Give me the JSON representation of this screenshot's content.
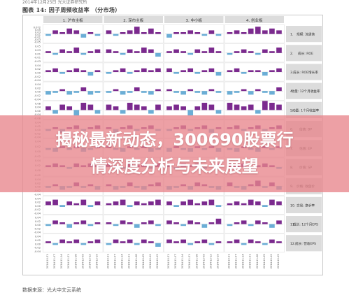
{
  "doc_header": "2014年12月25日 光大证券研究所",
  "figure": {
    "label": "图表 14:",
    "title": "因子周频收益率",
    "market": "（分市场）"
  },
  "source": "数据来源：光大中文云系统",
  "headline": {
    "line1": "揭秘最新动态，300690股票行",
    "line2": "情深度分析与未来展望"
  },
  "colors": {
    "purple": "#7b2a8e",
    "blue": "#6baed6",
    "panel_header": "#dcdcdc",
    "banner": "#e8858c"
  },
  "chart_data": {
    "type": "bar",
    "markets": [
      "1. 沪市主板",
      "2. 深市主板",
      "3. 中小板",
      "4. 创业板"
    ],
    "factors": [
      {
        "code": "1",
        "name": "规模",
        "sub": "流通值"
      },
      {
        "code": "2",
        "name": "成长",
        "sub": "ROE"
      },
      {
        "code": "3",
        "name": "成长",
        "sub": "ROE增长率"
      },
      {
        "code": "4",
        "name": "动量",
        "sub": "12个月收益率"
      },
      {
        "code": "5",
        "name": "动量",
        "sub": "1个月收益率"
      },
      {
        "code": "6",
        "name": "估值",
        "sub": "BP"
      },
      {
        "code": "7",
        "name": "估值",
        "sub": "EP"
      },
      {
        "code": "8",
        "name": "价值",
        "sub": "SP"
      },
      {
        "code": "9",
        "name": "价格",
        "sub": "收盘价"
      },
      {
        "code": "10",
        "name": "交易",
        "sub": "换手率"
      },
      {
        "code": "11",
        "name": "成长",
        "sub": "12个月EPS"
      },
      {
        "code": "12",
        "name": "成长",
        "sub": "营收EPS"
      }
    ],
    "y_ticks": [
      [
        "0.072",
        "0.05",
        "0.03",
        "0.01",
        "-0.01",
        "-0.03",
        "-0.05"
      ],
      [
        "0.05",
        "0.03",
        "0.01",
        "-0.01",
        "-0.03"
      ],
      [
        "0.04",
        "0.02",
        "0.00",
        "-0.02",
        "-0.04"
      ],
      [
        "0.04",
        "0.02",
        "0.00",
        "-0.02",
        "-0.04"
      ],
      [
        "0.08",
        "0.04",
        "0.00",
        "-0.04",
        "-0.08"
      ],
      [
        "0.04",
        "0.02",
        "0.00",
        "-0.02",
        "-0.04"
      ],
      [
        "0.04",
        "0.02",
        "0.00",
        "-0.02"
      ],
      [
        "0.04",
        "0.02",
        "0.00",
        "-0.02"
      ],
      [
        "0.04",
        "0.02",
        "0.00",
        "-0.02",
        "-0.04"
      ],
      [
        "0.04",
        "0.02",
        "0.00",
        "-0.02",
        "-0.04"
      ],
      [
        "0.04",
        "0.02",
        "0.00",
        "-0.02",
        "-0.04"
      ],
      [
        "0.04",
        "0.02",
        "0.00",
        "-0.02",
        "-0.04"
      ]
    ],
    "dates": [
      "2014-10-31",
      "2014-11-07",
      "2014-11-14",
      "2014-11-21",
      "2014-11-28",
      "2014-12-05",
      "2014-12-12",
      "2014-12-19"
    ],
    "values": [
      [
        [
          -0.01,
          0.02,
          0.01,
          0.03,
          0.02,
          -0.02,
          0.01,
          -0.01
        ],
        [
          0.02,
          -0.01,
          0.01,
          0.02,
          0.04,
          0.01,
          0.03,
          0.01
        ],
        [
          -0.02,
          0.01,
          0.01,
          0.02,
          0.01,
          -0.01,
          0.02,
          -0.01
        ],
        [
          0.01,
          0.02,
          0.01,
          0.03,
          0.04,
          0.02,
          0.03,
          0.02
        ]
      ],
      [
        [
          0.01,
          -0.01,
          0.02,
          0.01,
          0.03,
          -0.01,
          0.01,
          0.02
        ],
        [
          0.02,
          0.01,
          -0.01,
          0.02,
          0.01,
          0.03,
          0.02,
          -0.02
        ],
        [
          0.01,
          0.02,
          0.01,
          -0.01,
          0.02,
          0.01,
          0.03,
          0.01
        ],
        [
          -0.01,
          0.01,
          0.02,
          0.01,
          -0.01,
          0.02,
          0.01,
          0.03
        ]
      ],
      [
        [
          0.01,
          0.02,
          -0.01,
          0.01,
          0.02,
          0.01,
          -0.02,
          0.01
        ],
        [
          -0.01,
          0.01,
          0.02,
          -0.01,
          0.01,
          0.02,
          0.01,
          0.02
        ],
        [
          0.02,
          -0.01,
          0.01,
          0.02,
          -0.01,
          0.01,
          0.02,
          -0.02
        ],
        [
          0.01,
          0.02,
          -0.01,
          0.01,
          0.01,
          -0.02,
          0.01,
          0.02
        ]
      ],
      [
        [
          -0.02,
          -0.01,
          0.01,
          -0.02,
          -0.01,
          0.02,
          -0.02,
          -0.01
        ],
        [
          -0.01,
          0.01,
          -0.02,
          -0.01,
          0.02,
          -0.01,
          -0.02,
          0.01
        ],
        [
          0.01,
          -0.01,
          -0.02,
          0.01,
          -0.01,
          -0.02,
          0.01,
          -0.01
        ],
        [
          -0.02,
          -0.01,
          0.01,
          -0.02,
          0.01,
          -0.01,
          -0.02,
          0.02
        ]
      ],
      [
        [
          0.02,
          -0.02,
          0.03,
          0.02,
          -0.03,
          0.04,
          0.03,
          -0.02
        ],
        [
          0.03,
          0.02,
          -0.02,
          0.04,
          0.03,
          0.02,
          -0.02,
          0.03
        ],
        [
          0.02,
          0.03,
          0.02,
          -0.03,
          0.02,
          0.04,
          0.03,
          -0.02
        ],
        [
          0.04,
          0.03,
          0.02,
          0.03,
          -0.02,
          0.05,
          0.04,
          0.03
        ]
      ],
      [
        [
          -0.01,
          0.01,
          -0.02,
          0.01,
          0.02,
          -0.01,
          0.01,
          0.02
        ],
        [
          0.01,
          -0.02,
          0.01,
          0.02,
          -0.01,
          0.01,
          0.02,
          -0.01
        ],
        [
          -0.01,
          0.01,
          0.02,
          -0.01,
          0.01,
          0.02,
          -0.02,
          0.01
        ],
        [
          0.01,
          0.02,
          -0.01,
          0.01,
          0.02,
          -0.01,
          0.01,
          0.02
        ]
      ],
      [
        [
          -0.01,
          -0.02,
          0.01,
          -0.01,
          0.01,
          -0.02,
          -0.01,
          0.01
        ],
        [
          0.01,
          -0.01,
          -0.02,
          0.01,
          -0.01,
          0.01,
          -0.02,
          -0.01
        ],
        [
          -0.02,
          0.01,
          -0.01,
          -0.02,
          0.01,
          -0.01,
          0.01,
          -0.02
        ],
        [
          -0.01,
          -0.02,
          0.01,
          -0.01,
          -0.02,
          0.01,
          -0.01,
          0.01
        ]
      ],
      [
        [
          0.01,
          0.02,
          0.01,
          -0.01,
          0.02,
          0.01,
          0.02,
          0.01
        ],
        [
          0.02,
          0.01,
          -0.01,
          0.02,
          0.01,
          0.02,
          -0.01,
          0.02
        ],
        [
          0.01,
          -0.01,
          0.02,
          0.01,
          0.02,
          -0.01,
          0.01,
          0.02
        ],
        [
          0.02,
          0.01,
          0.02,
          -0.01,
          0.01,
          0.02,
          0.01,
          -0.01
        ]
      ],
      [
        [
          -0.01,
          0.01,
          -0.02,
          -0.01,
          0.02,
          -0.01,
          0.01,
          -0.02
        ],
        [
          0.01,
          -0.02,
          -0.01,
          0.02,
          -0.01,
          -0.02,
          0.01,
          0.02
        ],
        [
          -0.02,
          -0.01,
          0.01,
          -0.02,
          0.02,
          0.01,
          -0.01,
          -0.02
        ],
        [
          0.02,
          -0.01,
          -0.02,
          0.01,
          0.03,
          -0.01,
          0.02,
          -0.02
        ]
      ],
      [
        [
          0.02,
          0.03,
          -0.01,
          0.02,
          0.01,
          0.03,
          -0.01,
          0.02
        ],
        [
          0.01,
          0.02,
          0.03,
          -0.01,
          0.02,
          0.01,
          0.02,
          0.03
        ],
        [
          0.02,
          -0.01,
          0.02,
          0.03,
          0.01,
          0.02,
          0.03,
          -0.01
        ],
        [
          0.01,
          0.02,
          0.01,
          0.03,
          0.02,
          -0.01,
          0.03,
          0.02
        ]
      ],
      [
        [
          -0.01,
          0.02,
          0.01,
          -0.02,
          0.01,
          0.02,
          -0.01,
          0.01
        ],
        [
          0.01,
          -0.01,
          0.02,
          0.01,
          -0.02,
          0.01,
          0.02,
          -0.01
        ],
        [
          0.02,
          0.01,
          -0.01,
          0.02,
          0.01,
          -0.02,
          0.01,
          0.03
        ],
        [
          -0.01,
          0.01,
          0.02,
          -0.01,
          0.02,
          0.01,
          -0.02,
          0.02
        ]
      ],
      [
        [
          0.01,
          -0.01,
          0.02,
          0.01,
          0.02,
          -0.01,
          0.01,
          0.02
        ],
        [
          -0.01,
          0.02,
          0.01,
          0.02,
          -0.01,
          0.02,
          0.01,
          -0.02
        ],
        [
          0.02,
          0.01,
          0.02,
          -0.01,
          0.01,
          0.02,
          -0.01,
          0.01
        ],
        [
          0.01,
          0.02,
          -0.01,
          0.02,
          0.01,
          -0.01,
          0.02,
          0.01
        ]
      ]
    ]
  }
}
